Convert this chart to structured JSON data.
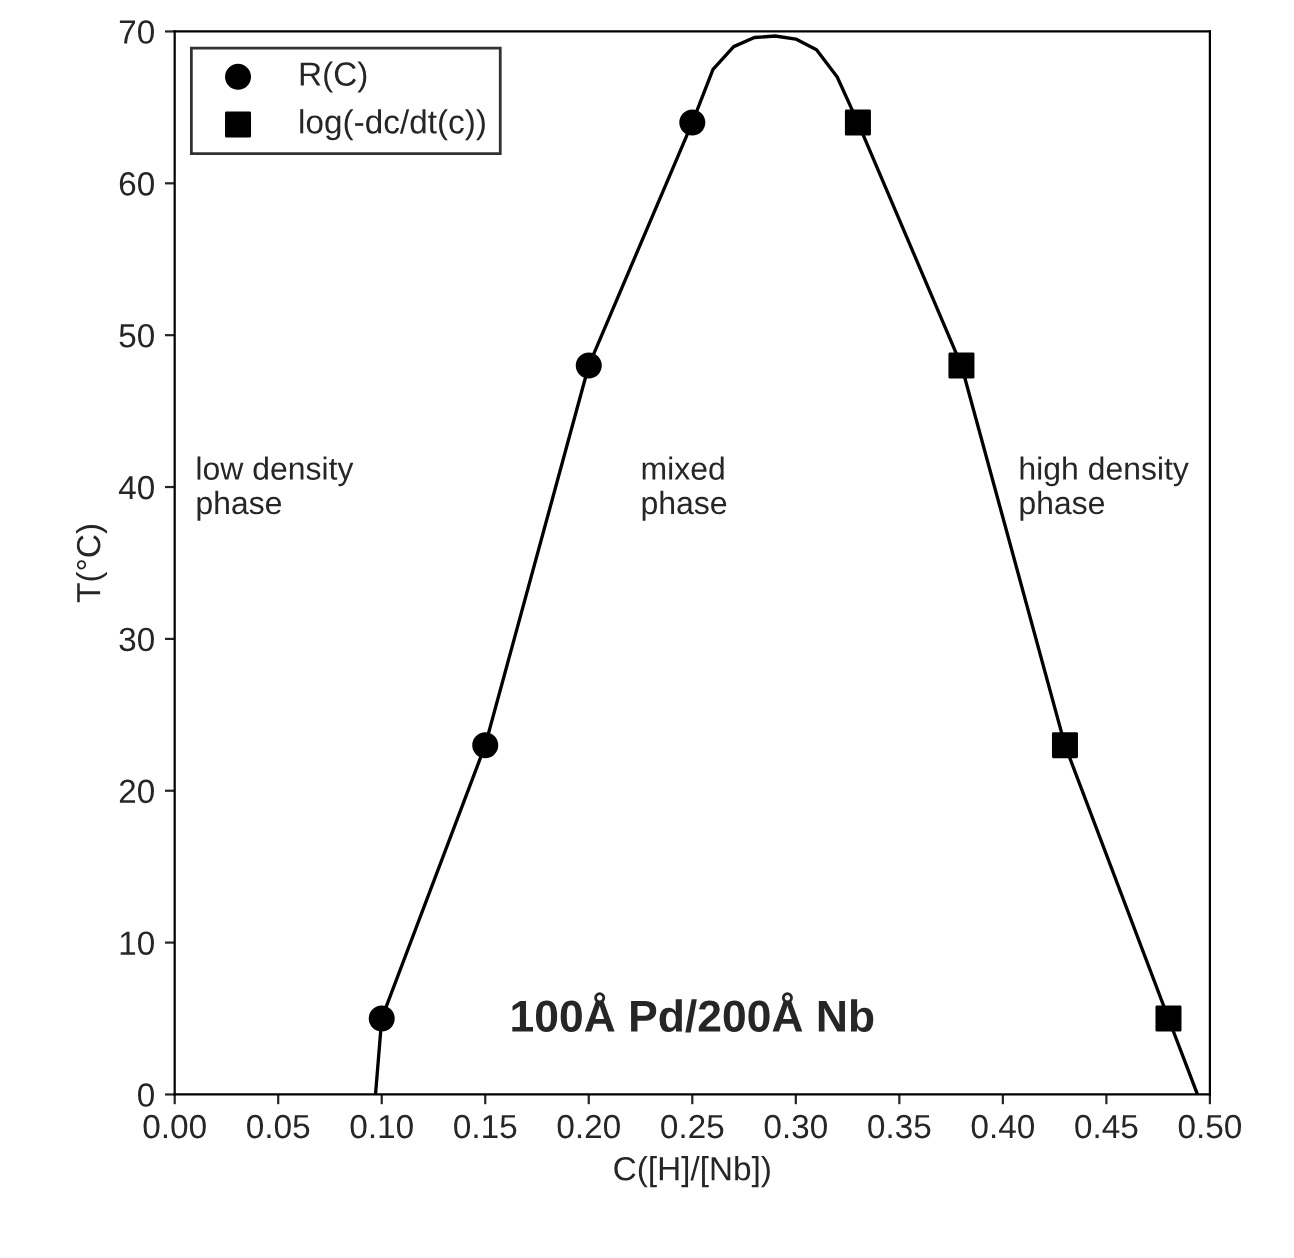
{
  "chart_data": {
    "type": "scatter",
    "xlabel": "C([H]/[Nb])",
    "ylabel": "T(°C)",
    "xlim": [
      0.0,
      0.5
    ],
    "xticks": [
      {
        "value": 0.0,
        "label": "0.00"
      },
      {
        "value": 0.05,
        "label": "0.05"
      },
      {
        "value": 0.1,
        "label": "0.10"
      },
      {
        "value": 0.15,
        "label": "0.15"
      },
      {
        "value": 0.2,
        "label": "0.20"
      },
      {
        "value": 0.25,
        "label": "0.25"
      },
      {
        "value": 0.3,
        "label": "0.30"
      },
      {
        "value": 0.35,
        "label": "0.35"
      },
      {
        "value": 0.4,
        "label": "0.40"
      },
      {
        "value": 0.45,
        "label": "0.45"
      },
      {
        "value": 0.5,
        "label": "0.50"
      }
    ],
    "ylim": [
      0,
      70
    ],
    "yticks": [
      0,
      10,
      20,
      30,
      40,
      50,
      60,
      70
    ],
    "series": [
      {
        "type": "line",
        "color": "#000000",
        "marker": "none",
        "line_style": "solid",
        "x": [
          0.097,
          0.1,
          0.15,
          0.2,
          0.25,
          0.26,
          0.27,
          0.28,
          0.29,
          0.3,
          0.31,
          0.32,
          0.33,
          0.38,
          0.43,
          0.48,
          0.494
        ],
        "values": [
          0,
          5,
          23,
          48,
          64,
          67.5,
          69,
          69.6,
          69.7,
          69.5,
          68.8,
          67,
          64,
          48,
          23,
          5,
          0
        ]
      },
      {
        "name": "R(C)",
        "color": "#000000",
        "marker": "circle",
        "x": [
          0.1,
          0.15,
          0.2,
          0.25
        ],
        "values": [
          5,
          23,
          48,
          64
        ]
      },
      {
        "name": "log(-dc/dt(c))",
        "color": "#000000",
        "marker": "square",
        "x": [
          0.33,
          0.38,
          0.43,
          0.48
        ],
        "values": [
          64,
          48,
          23,
          5
        ]
      }
    ],
    "annotations": [
      "low density\nphase",
      "mixed\nphase",
      "high density\nphase",
      "100Å Pd/200Å Nb"
    ],
    "legend": "top left",
    "grid": false
  }
}
